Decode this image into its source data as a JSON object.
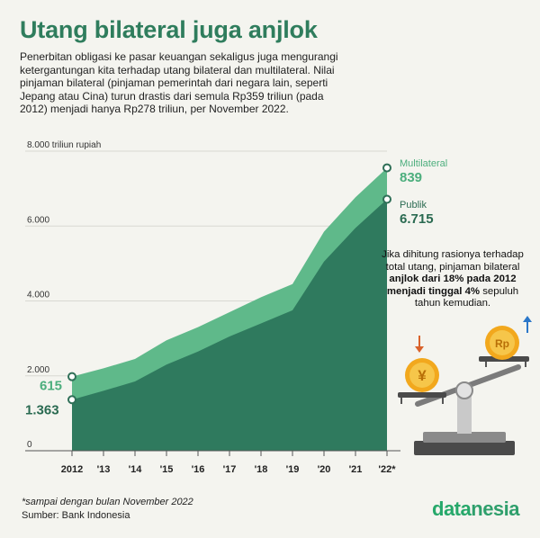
{
  "title": "Utang bilateral juga anjlok",
  "intro": "Penerbitan obligasi ke pasar keuangan sekaligus juga mengurangi ketergantungan kita terhadap utang bilateral dan multilateral. Nilai pinjaman bilateral (pinjaman pemerintah dari negara lain, seperti Jepang atau Cina) turun drastis dari semula Rp359 triliun (pada 2012) menjadi hanya Rp278 triliun, per November 2022.",
  "note": {
    "line1": "Jika dihitung rasionya terhadap total utang, pinjaman bilateral",
    "line1_bold": "anjlok dari 18% pada 2012 menjadi tinggal 4%",
    "line2": "sepuluh tahun kemudian."
  },
  "footnote": "*sampai dengan bulan November 2022",
  "source": "Sumber: Bank Indonesia",
  "brand": {
    "part1": "data",
    "part2": "nesia"
  },
  "colors": {
    "multilateral": "#5fb98a",
    "publik": "#2f7a5e",
    "title": "#2f7d5d",
    "background": "#f4f4ef"
  },
  "icons": [
    "yen-coin-icon",
    "rupiah-coin-icon",
    "balance-scale-icon",
    "arrow-down-icon",
    "arrow-up-icon"
  ],
  "chart_data": {
    "type": "area",
    "ylabel": "triliun rupiah",
    "ylim": [
      0,
      8000
    ],
    "yticks": [
      "8.000 triliun rupiah",
      "6.000",
      "4.000",
      "2.000",
      "0"
    ],
    "ytick_values": [
      8000,
      6000,
      4000,
      2000,
      0
    ],
    "x": [
      "2012",
      "'13",
      "'14",
      "'15",
      "'16",
      "'17",
      "'18",
      "'19",
      "'20",
      "'21",
      "'22*"
    ],
    "stacked": true,
    "series": [
      {
        "name": "Publik",
        "values": [
          1363,
          1600,
          1850,
          2300,
          2650,
          3050,
          3400,
          3750,
          5050,
          5950,
          6715
        ],
        "start_label": "1.363",
        "end_label": "6.715"
      },
      {
        "name": "Multilateral",
        "values": [
          615,
          600,
          600,
          650,
          650,
          650,
          700,
          700,
          800,
          820,
          839
        ],
        "start_label": "615",
        "end_label": "839"
      }
    ]
  }
}
